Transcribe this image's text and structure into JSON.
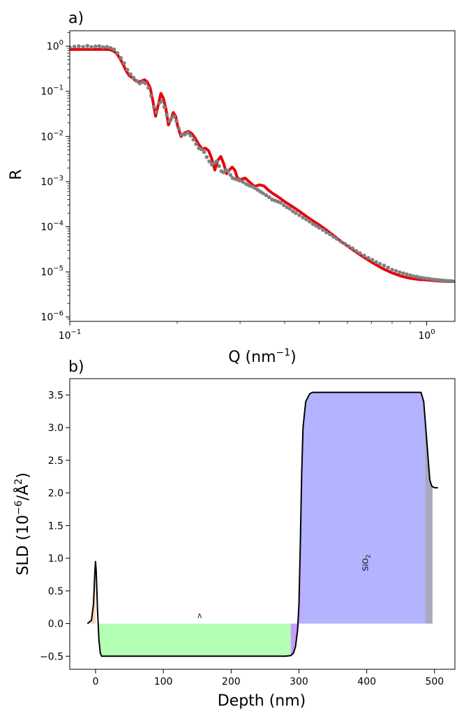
{
  "chart_data": [
    {
      "type": "line",
      "panel_label": "a)",
      "xlabel_base": "Q (nm",
      "xlabel_exp": "−1",
      "xlabel_close": ")",
      "ylabel": "R",
      "xscale": "log",
      "yscale": "log",
      "xlim": [
        0.1,
        1.2
      ],
      "ylim": [
        8e-07,
        2.2
      ],
      "x_ticks": [
        {
          "base": "10",
          "exp": "−1"
        },
        {
          "base": "10",
          "exp": "0"
        }
      ],
      "y_ticks": [
        {
          "base": "10",
          "exp": "0"
        },
        {
          "base": "10",
          "exp": "−1"
        },
        {
          "base": "10",
          "exp": "−2"
        },
        {
          "base": "10",
          "exp": "−3"
        },
        {
          "base": "10",
          "exp": "−4"
        },
        {
          "base": "10",
          "exp": "−5"
        },
        {
          "base": "10",
          "exp": "−6"
        }
      ],
      "series": [
        {
          "role": "fit",
          "color": "#e8000b",
          "x": [
            0.1,
            0.11,
            0.12,
            0.126,
            0.129,
            0.132,
            0.135,
            0.138,
            0.141,
            0.144,
            0.147,
            0.15,
            0.153,
            0.156,
            0.159,
            0.162,
            0.165,
            0.168,
            0.171,
            0.174,
            0.177,
            0.18,
            0.183,
            0.186,
            0.189,
            0.192,
            0.195,
            0.198,
            0.201,
            0.205,
            0.21,
            0.215,
            0.22,
            0.225,
            0.23,
            0.235,
            0.24,
            0.245,
            0.25,
            0.255,
            0.26,
            0.265,
            0.27,
            0.275,
            0.28,
            0.285,
            0.29,
            0.295,
            0.3,
            0.31,
            0.32,
            0.33,
            0.34,
            0.35,
            0.36,
            0.37,
            0.38,
            0.39,
            0.4,
            0.42,
            0.44,
            0.46,
            0.48,
            0.5,
            0.52,
            0.55,
            0.58,
            0.61,
            0.65,
            0.7,
            0.75,
            0.8,
            0.85,
            0.9,
            0.95,
            1.0,
            1.05,
            1.1,
            1.15,
            1.2
          ],
          "y": [
            0.85,
            0.85,
            0.85,
            0.85,
            0.84,
            0.8,
            0.7,
            0.55,
            0.4,
            0.28,
            0.22,
            0.2,
            0.17,
            0.16,
            0.17,
            0.18,
            0.16,
            0.12,
            0.06,
            0.028,
            0.05,
            0.09,
            0.07,
            0.04,
            0.018,
            0.024,
            0.034,
            0.028,
            0.016,
            0.01,
            0.012,
            0.013,
            0.0115,
            0.009,
            0.0066,
            0.0053,
            0.0055,
            0.0048,
            0.0032,
            0.0018,
            0.003,
            0.0036,
            0.0025,
            0.0015,
            0.0018,
            0.0021,
            0.0018,
            0.0012,
            0.0011,
            0.0012,
            0.00095,
            0.00078,
            0.00085,
            0.0008,
            0.00065,
            0.00055,
            0.00048,
            0.00042,
            0.00036,
            0.00028,
            0.00022,
            0.00017,
            0.000135,
            0.00011,
            8.8e-05,
            6.3e-05,
            4.5e-05,
            3.4e-05,
            2.4e-05,
            1.65e-05,
            1.2e-05,
            9.5e-06,
            8e-06,
            7.2e-06,
            6.8e-06,
            6.6e-06,
            6.4e-06,
            6.2e-06,
            6.1e-06,
            6.1e-06
          ]
        },
        {
          "role": "data",
          "color": "#808080",
          "x": [
            0.1,
            0.103,
            0.106,
            0.109,
            0.112,
            0.115,
            0.118,
            0.121,
            0.124,
            0.127,
            0.13,
            0.133,
            0.136,
            0.139,
            0.142,
            0.145,
            0.148,
            0.151,
            0.154,
            0.157,
            0.16,
            0.163,
            0.166,
            0.169,
            0.172,
            0.175,
            0.178,
            0.181,
            0.184,
            0.187,
            0.19,
            0.193,
            0.196,
            0.199,
            0.202,
            0.206,
            0.21,
            0.214,
            0.218,
            0.222,
            0.226,
            0.23,
            0.234,
            0.238,
            0.242,
            0.246,
            0.25,
            0.254,
            0.258,
            0.262,
            0.266,
            0.27,
            0.274,
            0.278,
            0.282,
            0.286,
            0.29,
            0.295,
            0.3,
            0.306,
            0.312,
            0.318,
            0.324,
            0.33,
            0.336,
            0.342,
            0.348,
            0.355,
            0.362,
            0.369,
            0.376,
            0.383,
            0.39,
            0.398,
            0.406,
            0.414,
            0.422,
            0.43,
            0.44,
            0.45,
            0.46,
            0.47,
            0.48,
            0.49,
            0.5,
            0.512,
            0.524,
            0.536,
            0.548,
            0.56,
            0.575,
            0.59,
            0.605,
            0.62,
            0.635,
            0.65,
            0.668,
            0.686,
            0.704,
            0.722,
            0.74,
            0.76,
            0.78,
            0.8,
            0.82,
            0.84,
            0.86,
            0.88,
            0.9,
            0.92,
            0.94,
            0.96,
            0.98,
            1.0,
            1.02,
            1.04,
            1.06,
            1.08,
            1.1,
            1.12,
            1.14,
            1.16,
            1.18
          ],
          "y": [
            0.95,
            0.98,
            1.0,
            0.97,
            1.02,
            0.96,
            0.99,
            1.0,
            0.95,
            0.97,
            0.92,
            0.85,
            0.7,
            0.55,
            0.42,
            0.3,
            0.24,
            0.2,
            0.17,
            0.15,
            0.16,
            0.15,
            0.12,
            0.08,
            0.045,
            0.035,
            0.055,
            0.06,
            0.045,
            0.03,
            0.022,
            0.026,
            0.028,
            0.022,
            0.015,
            0.011,
            0.011,
            0.012,
            0.0105,
            0.0085,
            0.0068,
            0.0055,
            0.0052,
            0.0045,
            0.0035,
            0.0028,
            0.0024,
            0.0026,
            0.0028,
            0.0022,
            0.0017,
            0.0016,
            0.0018,
            0.0017,
            0.0014,
            0.0012,
            0.00115,
            0.0011,
            0.00105,
            0.00098,
            0.00088,
            0.00082,
            0.00078,
            0.00072,
            0.00066,
            0.0006,
            0.00055,
            0.0005,
            0.00045,
            0.0004,
            0.00038,
            0.00036,
            0.00034,
            0.0003,
            0.00027,
            0.00025,
            0.00022,
            0.0002,
            0.00018,
            0.00016,
            0.000145,
            0.00013,
            0.000115,
            0.000105,
            9.5e-05,
            8.5e-05,
            7.5e-05,
            6.8e-05,
            6e-05,
            5.4e-05,
            4.7e-05,
            4.2e-05,
            3.7e-05,
            3.3e-05,
            2.9e-05,
            2.6e-05,
            2.3e-05,
            2.05e-05,
            1.85e-05,
            1.65e-05,
            1.5e-05,
            1.38e-05,
            1.25e-05,
            1.12e-05,
            1.05e-05,
            9.8e-06,
            9.3e-06,
            8.8e-06,
            8.4e-06,
            8e-06,
            7.8e-06,
            7.5e-06,
            7.3e-06,
            7.1e-06,
            7e-06,
            6.8e-06,
            6.7e-06,
            6.6e-06,
            6.5e-06,
            6.4e-06,
            6.3e-06,
            6.3e-06,
            6.2e-06
          ]
        }
      ]
    },
    {
      "type": "area",
      "panel_label": "b)",
      "xlabel": "Depth (nm)",
      "ylabel_base": "SLD (10",
      "ylabel_exp": "−6",
      "ylabel_mid": "/Å",
      "ylabel_exp2": "2",
      "ylabel_close": ")",
      "xlim": [
        -38,
        530
      ],
      "ylim": [
        -0.7,
        3.75
      ],
      "x_ticks": [
        0,
        100,
        200,
        300,
        400,
        500
      ],
      "x_tick_labels": [
        "0",
        "100",
        "200",
        "300",
        "400",
        "500"
      ],
      "y_ticks": [
        -0.5,
        0.0,
        0.5,
        1.0,
        1.5,
        2.0,
        2.5,
        3.0,
        3.5
      ],
      "y_tick_labels": [
        "−0.5",
        "0.0",
        "0.5",
        "1.0",
        "1.5",
        "2.0",
        "2.5",
        "3.0",
        "3.5"
      ],
      "layer_labels": [
        {
          "text": ">",
          "x": 157,
          "y": 0.12,
          "rotate": true
        },
        {
          "text_base": "SiO",
          "text_sub": "2",
          "x": 402,
          "y": 0.93,
          "rotate": true
        }
      ],
      "profile": {
        "color": "#000000",
        "x": [
          -12,
          -6,
          -3,
          -1,
          0,
          1,
          3,
          5,
          7,
          9,
          12,
          20,
          100,
          200,
          280,
          288,
          292,
          295,
          298,
          300,
          302,
          304,
          306,
          310,
          316,
          320,
          330,
          400,
          480,
          484,
          487,
          490,
          493,
          496,
          500,
          505
        ],
        "y": [
          0.0,
          0.05,
          0.3,
          0.8,
          0.95,
          0.8,
          0.2,
          -0.25,
          -0.45,
          -0.5,
          -0.5,
          -0.5,
          -0.5,
          -0.5,
          -0.5,
          -0.49,
          -0.45,
          -0.35,
          -0.1,
          0.3,
          1.2,
          2.3,
          3.0,
          3.4,
          3.52,
          3.54,
          3.54,
          3.54,
          3.54,
          3.4,
          3.0,
          2.6,
          2.2,
          2.1,
          2.08,
          2.08
        ]
      },
      "fills": [
        {
          "name": "cap",
          "color": "#f5d6b5",
          "x0": -12,
          "x1": 0
        },
        {
          "name": "film",
          "color": "#b3ffb3",
          "x0": 3,
          "x1": 288
        },
        {
          "name": "interface",
          "color": "#cc99ff",
          "x0": 288,
          "x1": 303
        },
        {
          "name": "sio2",
          "color": "#b3b3ff",
          "x0": 303,
          "x1": 486
        },
        {
          "name": "substrate",
          "color": "#a8a8c0",
          "x0": 486,
          "x1": 497
        }
      ]
    }
  ]
}
